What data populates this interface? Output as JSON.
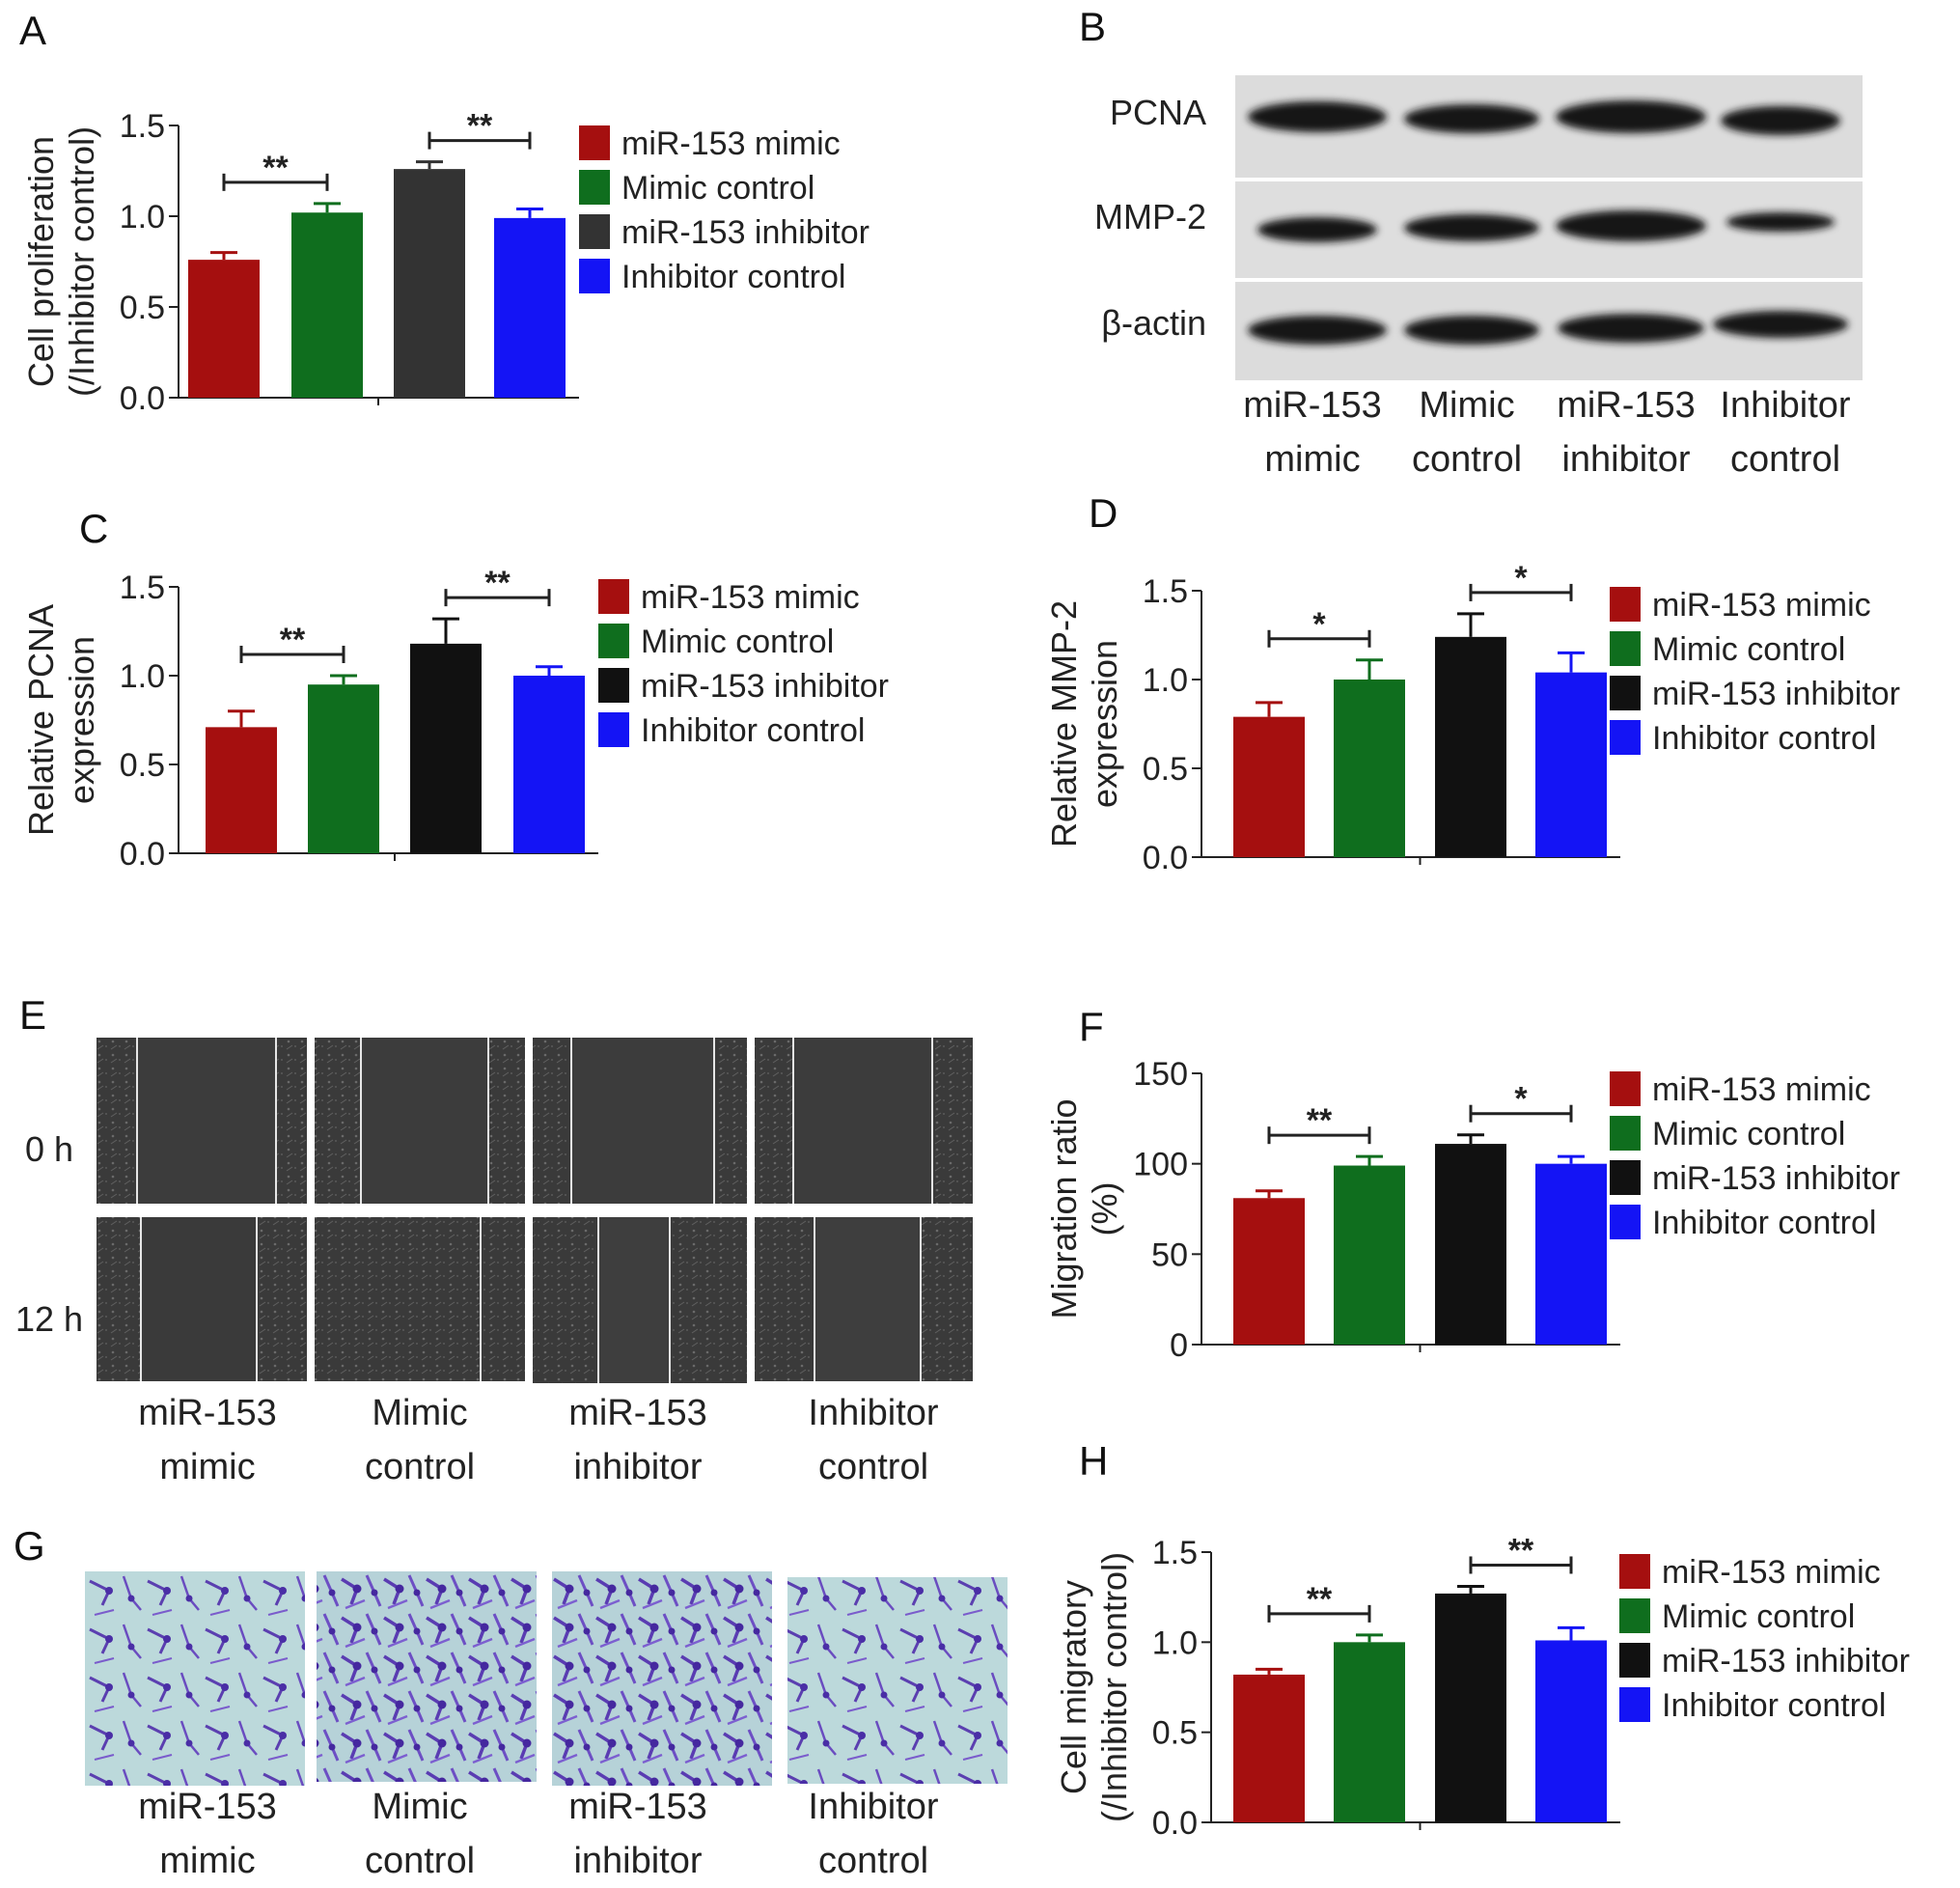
{
  "panels": {
    "A": "A",
    "B": "B",
    "C": "C",
    "D": "D",
    "E": "E",
    "F": "F",
    "G": "G",
    "H": "H"
  },
  "group_labels": {
    "g1": [
      "miR-153",
      "mimic"
    ],
    "g2": [
      "Mimic",
      "control"
    ],
    "g3": [
      "miR-153",
      "inhibitor"
    ],
    "g4": [
      "Inhibitor",
      "control"
    ]
  },
  "blot": {
    "proteins": [
      "PCNA",
      "MMP-2",
      "β-actin"
    ]
  },
  "wound": {
    "times": [
      "0 h",
      "12 h"
    ]
  },
  "colors": {
    "miR-153 mimic": "#a50f0f",
    "Mimic control": "#0f6e1e",
    "miR-153 inhibitor": "#111111",
    "Inhibitor control": "#1414f5",
    "inhibitor_dark_A": "#333333"
  },
  "chart_data": [
    {
      "id": "A",
      "type": "bar",
      "categories": [
        "miR-153 mimic",
        "Mimic control",
        "miR-153 inhibitor",
        "Inhibitor control"
      ],
      "values": [
        0.76,
        1.02,
        1.26,
        0.99
      ],
      "errors": [
        0.04,
        0.05,
        0.04,
        0.05
      ],
      "ylabel": [
        "Cell proliferation",
        "(/Inhibitor control)"
      ],
      "ylim": [
        0,
        1.5
      ],
      "yticks": [
        "0.0",
        "0.5",
        "1.0",
        "1.5"
      ],
      "legend": [
        "miR-153 mimic",
        "Mimic control",
        "miR-153 inhibitor",
        "Inhibitor control"
      ],
      "significance": [
        {
          "pair": [
            0,
            1
          ],
          "label": "**"
        },
        {
          "pair": [
            2,
            3
          ],
          "label": "**"
        }
      ]
    },
    {
      "id": "C",
      "type": "bar",
      "categories": [
        "miR-153 mimic",
        "Mimic control",
        "miR-153 inhibitor",
        "Inhibitor control"
      ],
      "values": [
        0.71,
        0.95,
        1.18,
        1.0
      ],
      "errors": [
        0.09,
        0.05,
        0.14,
        0.05
      ],
      "ylabel": [
        "Relative PCNA",
        "expression"
      ],
      "ylim": [
        0,
        1.5
      ],
      "yticks": [
        "0.0",
        "0.5",
        "1.0",
        "1.5"
      ],
      "legend": [
        "miR-153 mimic",
        "Mimic control",
        "miR-153 inhibitor",
        "Inhibitor control"
      ],
      "significance": [
        {
          "pair": [
            0,
            1
          ],
          "label": "**"
        },
        {
          "pair": [
            2,
            3
          ],
          "label": "**"
        }
      ]
    },
    {
      "id": "D",
      "type": "bar",
      "categories": [
        "miR-153 mimic",
        "Mimic control",
        "miR-153 inhibitor",
        "Inhibitor control"
      ],
      "values": [
        0.79,
        1.0,
        1.24,
        1.04
      ],
      "errors": [
        0.08,
        0.11,
        0.13,
        0.11
      ],
      "ylabel": [
        "Relative MMP-2",
        "expression"
      ],
      "ylim": [
        0,
        1.5
      ],
      "yticks": [
        "0.0",
        "0.5",
        "1.0",
        "1.5"
      ],
      "legend": [
        "miR-153 mimic",
        "Mimic control",
        "miR-153 inhibitor",
        "Inhibitor control"
      ],
      "significance": [
        {
          "pair": [
            0,
            1
          ],
          "label": "*"
        },
        {
          "pair": [
            2,
            3
          ],
          "label": "*"
        }
      ]
    },
    {
      "id": "F",
      "type": "bar",
      "categories": [
        "miR-153 mimic",
        "Mimic control",
        "miR-153 inhibitor",
        "Inhibitor control"
      ],
      "values": [
        81,
        99,
        111,
        100
      ],
      "errors": [
        4,
        5,
        5,
        4
      ],
      "ylabel": [
        "Migration ratio",
        "(%)"
      ],
      "ylim": [
        0,
        150
      ],
      "yticks": [
        "0",
        "50",
        "100",
        "150"
      ],
      "legend": [
        "miR-153 mimic",
        "Mimic control",
        "miR-153 inhibitor",
        "Inhibitor control"
      ],
      "significance": [
        {
          "pair": [
            0,
            1
          ],
          "label": "**"
        },
        {
          "pair": [
            2,
            3
          ],
          "label": "*"
        }
      ]
    },
    {
      "id": "H",
      "type": "bar",
      "categories": [
        "miR-153 mimic",
        "Mimic control",
        "miR-153 inhibitor",
        "Inhibitor control"
      ],
      "values": [
        0.82,
        1.0,
        1.27,
        1.01
      ],
      "errors": [
        0.03,
        0.04,
        0.04,
        0.07
      ],
      "ylabel": [
        "Cell migratory",
        "(/Inhibitor control)"
      ],
      "ylim": [
        0,
        1.5
      ],
      "yticks": [
        "0.0",
        "0.5",
        "1.0",
        "1.5"
      ],
      "legend": [
        "miR-153 mimic",
        "Mimic control",
        "miR-153 inhibitor",
        "Inhibitor control"
      ],
      "significance": [
        {
          "pair": [
            0,
            1
          ],
          "label": "**"
        },
        {
          "pair": [
            2,
            3
          ],
          "label": "**"
        }
      ]
    }
  ]
}
